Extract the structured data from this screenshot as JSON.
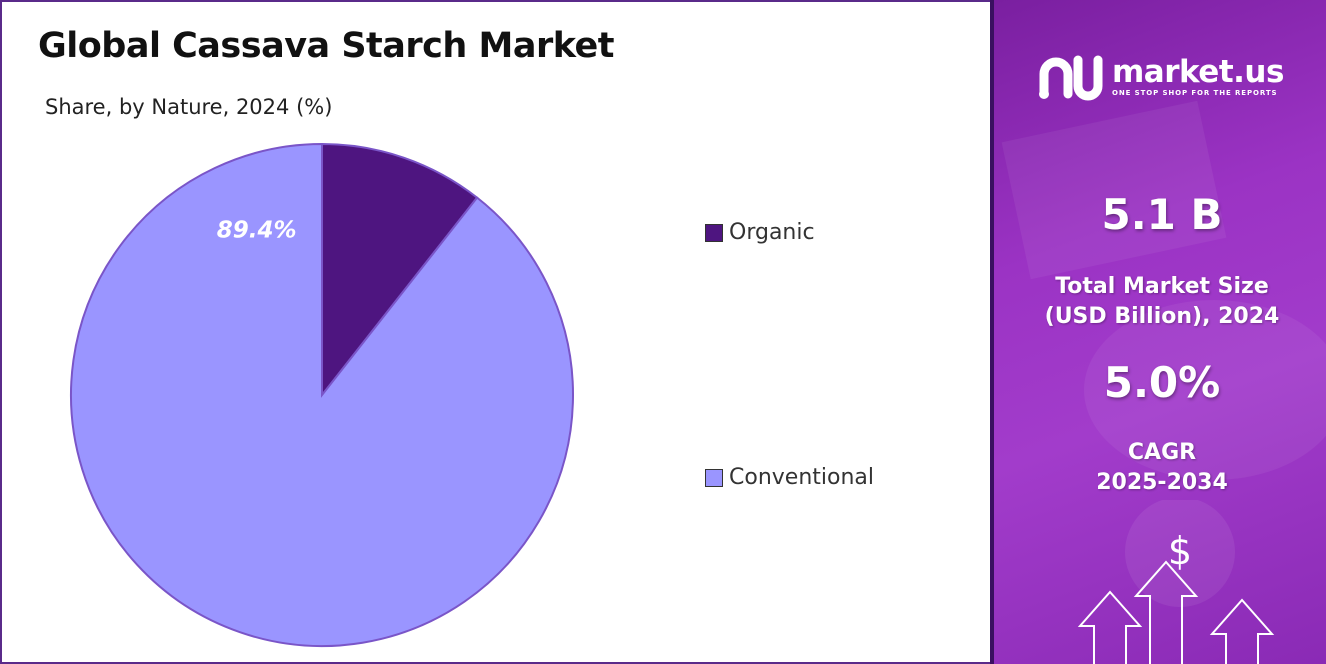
{
  "chart_data": {
    "type": "pie",
    "title": "Global Cassava Starch Market",
    "subtitle": "Share, by Nature, 2024 (%)",
    "slices": [
      {
        "name": "Organic",
        "value": 10.6,
        "color": "#4e1580",
        "label": ""
      },
      {
        "name": "Conventional",
        "value": 89.4,
        "color": "#9a95ff",
        "label": "89.4%"
      }
    ],
    "legend_position": "right"
  },
  "brand": {
    "name": "market.us",
    "tagline": "ONE STOP SHOP FOR THE REPORTS"
  },
  "stats": {
    "market_size_value": "5.1 B",
    "market_size_label_line1": "Total Market Size",
    "market_size_label_line2": "(USD Billion), 2024",
    "cagr_value": "5.0%",
    "cagr_label_line1": "CAGR",
    "cagr_label_line2": "2025-2034"
  },
  "icons": {
    "currency": "$"
  }
}
